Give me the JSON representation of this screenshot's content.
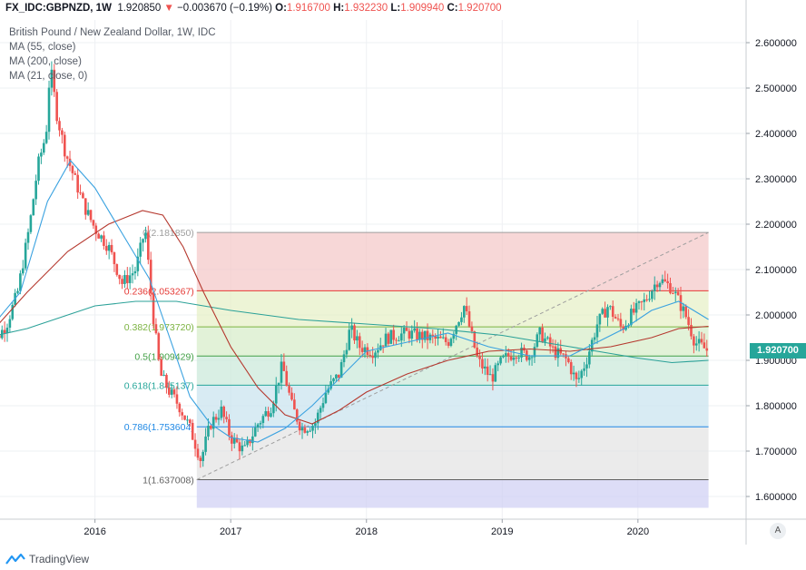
{
  "header": {
    "symbol": "FX_IDC:GBPNZD, 1W",
    "last": "1.920850",
    "arrow": "▼",
    "change": "−0.003670 (−0.19%)",
    "o_label": "O:",
    "o_value": "1.916700",
    "h_label": "H:",
    "h_value": "1.932230",
    "l_label": "L:",
    "l_value": "1.909940",
    "c_label": "C:",
    "c_value": "1.920700"
  },
  "legend": [
    "British Pound / New Zealand Dollar, 1W, IDC",
    "MA (55, close)",
    "MA (200, close)",
    "MA (21, close, 0)"
  ],
  "last_price_tag": "1.920700",
  "auto_scale_button": "A",
  "brand": "TradingView",
  "colors": {
    "up": "#26a69a",
    "down": "#ef5350",
    "ma55": "#3aa2e0",
    "ma200": "#2ba198",
    "ma21": "#b5382e"
  },
  "chart_data": {
    "type": "candlestick",
    "y_axis": {
      "min": 1.55,
      "max": 2.65,
      "ticks": [
        1.6,
        1.7,
        1.8,
        1.9,
        2.0,
        2.1,
        2.2,
        2.3,
        2.4,
        2.5,
        2.6
      ],
      "tick_labels": [
        "1.600000",
        "1.700000",
        "1.800000",
        "1.900000",
        "2.000000",
        "2.100000",
        "2.200000",
        "2.300000",
        "2.400000",
        "2.500000",
        "2.600000"
      ]
    },
    "x_axis": {
      "start": 2015.2,
      "end": 2020.75,
      "ticks": [
        2016,
        2017,
        2018,
        2019,
        2020
      ],
      "tick_labels": [
        "2016",
        "2017",
        "2018",
        "2019",
        "2020"
      ]
    },
    "fibonacci": {
      "start_x": 2016.75,
      "end_x": 2020.52,
      "levels": [
        {
          "ratio": "0",
          "value": 2.18185,
          "label": "0(2.181850)",
          "color": "#9e9e9e",
          "fill": "#f3c6c6"
        },
        {
          "ratio": "0.236",
          "value": 2.053267,
          "label": "0.236(2.053267)",
          "color": "#e53935",
          "fill": "#e6efc5"
        },
        {
          "ratio": "0.382",
          "value": 1.97372,
          "label": "0.382(1.973720)",
          "color": "#7cb342",
          "fill": "#d5ecc8"
        },
        {
          "ratio": "0.5",
          "value": 1.909429,
          "label": "0.5(1.909429)",
          "color": "#43a047",
          "fill": "#c9e8d9"
        },
        {
          "ratio": "0.618",
          "value": 1.845137,
          "label": "0.618(1.845137)",
          "color": "#26a69a",
          "fill": "#c8e3ee"
        },
        {
          "ratio": "0.786",
          "value": 1.753604,
          "label": "0.786(1.753604)",
          "color": "#1e88e5",
          "fill": "#e3e3e3"
        },
        {
          "ratio": "1",
          "value": 1.637008,
          "label": "1(1.637008)",
          "color": "#616161",
          "fill": "#cfcff3"
        }
      ]
    },
    "trend_line": {
      "from": [
        2016.75,
        1.637008
      ],
      "to": [
        2020.52,
        2.18185
      ]
    },
    "price_path": [
      [
        2015.2,
        1.97
      ],
      [
        2015.28,
        1.95
      ],
      [
        2015.35,
        1.98
      ],
      [
        2015.43,
        2.05
      ],
      [
        2015.52,
        2.2
      ],
      [
        2015.58,
        2.33
      ],
      [
        2015.64,
        2.4
      ],
      [
        2015.67,
        2.55
      ],
      [
        2015.72,
        2.44
      ],
      [
        2015.78,
        2.36
      ],
      [
        2015.85,
        2.3
      ],
      [
        2015.92,
        2.24
      ],
      [
        2016.0,
        2.19
      ],
      [
        2016.1,
        2.15
      ],
      [
        2016.2,
        2.07
      ],
      [
        2016.3,
        2.1
      ],
      [
        2016.37,
        2.19
      ],
      [
        2016.42,
        2.02
      ],
      [
        2016.48,
        1.87
      ],
      [
        2016.55,
        1.83
      ],
      [
        2016.62,
        1.8
      ],
      [
        2016.7,
        1.75
      ],
      [
        2016.78,
        1.68
      ],
      [
        2016.85,
        1.76
      ],
      [
        2016.93,
        1.79
      ],
      [
        2017.0,
        1.73
      ],
      [
        2017.1,
        1.7
      ],
      [
        2017.2,
        1.76
      ],
      [
        2017.3,
        1.8
      ],
      [
        2017.38,
        1.89
      ],
      [
        2017.45,
        1.8
      ],
      [
        2017.52,
        1.75
      ],
      [
        2017.62,
        1.76
      ],
      [
        2017.7,
        1.83
      ],
      [
        2017.8,
        1.87
      ],
      [
        2017.88,
        1.97
      ],
      [
        2017.95,
        1.93
      ],
      [
        2018.05,
        1.92
      ],
      [
        2018.15,
        1.95
      ],
      [
        2018.3,
        1.96
      ],
      [
        2018.45,
        1.95
      ],
      [
        2018.6,
        1.94
      ],
      [
        2018.72,
        2.02
      ],
      [
        2018.82,
        1.9
      ],
      [
        2018.92,
        1.86
      ],
      [
        2019.0,
        1.9
      ],
      [
        2019.1,
        1.92
      ],
      [
        2019.2,
        1.91
      ],
      [
        2019.28,
        1.96
      ],
      [
        2019.38,
        1.92
      ],
      [
        2019.48,
        1.9
      ],
      [
        2019.55,
        1.85
      ],
      [
        2019.62,
        1.9
      ],
      [
        2019.7,
        1.98
      ],
      [
        2019.78,
        2.02
      ],
      [
        2019.88,
        1.97
      ],
      [
        2019.95,
        2.0
      ],
      [
        2020.05,
        2.03
      ],
      [
        2020.15,
        2.08
      ],
      [
        2020.25,
        2.06
      ],
      [
        2020.35,
        2.0
      ],
      [
        2020.42,
        1.94
      ],
      [
        2020.52,
        1.92
      ]
    ],
    "ma55": [
      [
        2015.2,
        1.96
      ],
      [
        2015.45,
        2.05
      ],
      [
        2015.65,
        2.25
      ],
      [
        2015.82,
        2.34
      ],
      [
        2016.0,
        2.28
      ],
      [
        2016.2,
        2.18
      ],
      [
        2016.4,
        2.08
      ],
      [
        2016.55,
        1.95
      ],
      [
        2016.7,
        1.82
      ],
      [
        2016.85,
        1.76
      ],
      [
        2017.0,
        1.73
      ],
      [
        2017.2,
        1.72
      ],
      [
        2017.4,
        1.75
      ],
      [
        2017.6,
        1.8
      ],
      [
        2017.8,
        1.86
      ],
      [
        2018.0,
        1.92
      ],
      [
        2018.3,
        1.94
      ],
      [
        2018.6,
        1.96
      ],
      [
        2018.9,
        1.93
      ],
      [
        2019.2,
        1.91
      ],
      [
        2019.5,
        1.91
      ],
      [
        2019.7,
        1.94
      ],
      [
        2019.9,
        1.97
      ],
      [
        2020.1,
        2.01
      ],
      [
        2020.3,
        2.03
      ],
      [
        2020.52,
        1.99
      ]
    ],
    "ma200": [
      [
        2015.2,
        1.95
      ],
      [
        2015.5,
        1.97
      ],
      [
        2015.8,
        2.0
      ],
      [
        2016.0,
        2.02
      ],
      [
        2016.3,
        2.03
      ],
      [
        2016.6,
        2.03
      ],
      [
        2017.0,
        2.01
      ],
      [
        2017.5,
        1.99
      ],
      [
        2018.0,
        1.98
      ],
      [
        2018.5,
        1.97
      ],
      [
        2019.0,
        1.955
      ],
      [
        2019.5,
        1.93
      ],
      [
        2019.8,
        1.915
      ],
      [
        2020.0,
        1.905
      ],
      [
        2020.25,
        1.895
      ],
      [
        2020.52,
        1.9
      ]
    ],
    "ma21": [
      [
        2015.2,
        1.95
      ],
      [
        2015.5,
        2.05
      ],
      [
        2015.8,
        2.14
      ],
      [
        2016.1,
        2.2
      ],
      [
        2016.35,
        2.23
      ],
      [
        2016.5,
        2.22
      ],
      [
        2016.65,
        2.15
      ],
      [
        2016.8,
        2.05
      ],
      [
        2017.0,
        1.93
      ],
      [
        2017.2,
        1.84
      ],
      [
        2017.4,
        1.78
      ],
      [
        2017.6,
        1.76
      ],
      [
        2017.8,
        1.79
      ],
      [
        2018.0,
        1.83
      ],
      [
        2018.3,
        1.87
      ],
      [
        2018.6,
        1.9
      ],
      [
        2018.9,
        1.92
      ],
      [
        2019.2,
        1.925
      ],
      [
        2019.5,
        1.92
      ],
      [
        2019.8,
        1.93
      ],
      [
        2020.1,
        1.95
      ],
      [
        2020.3,
        1.97
      ],
      [
        2020.52,
        1.975
      ]
    ]
  }
}
